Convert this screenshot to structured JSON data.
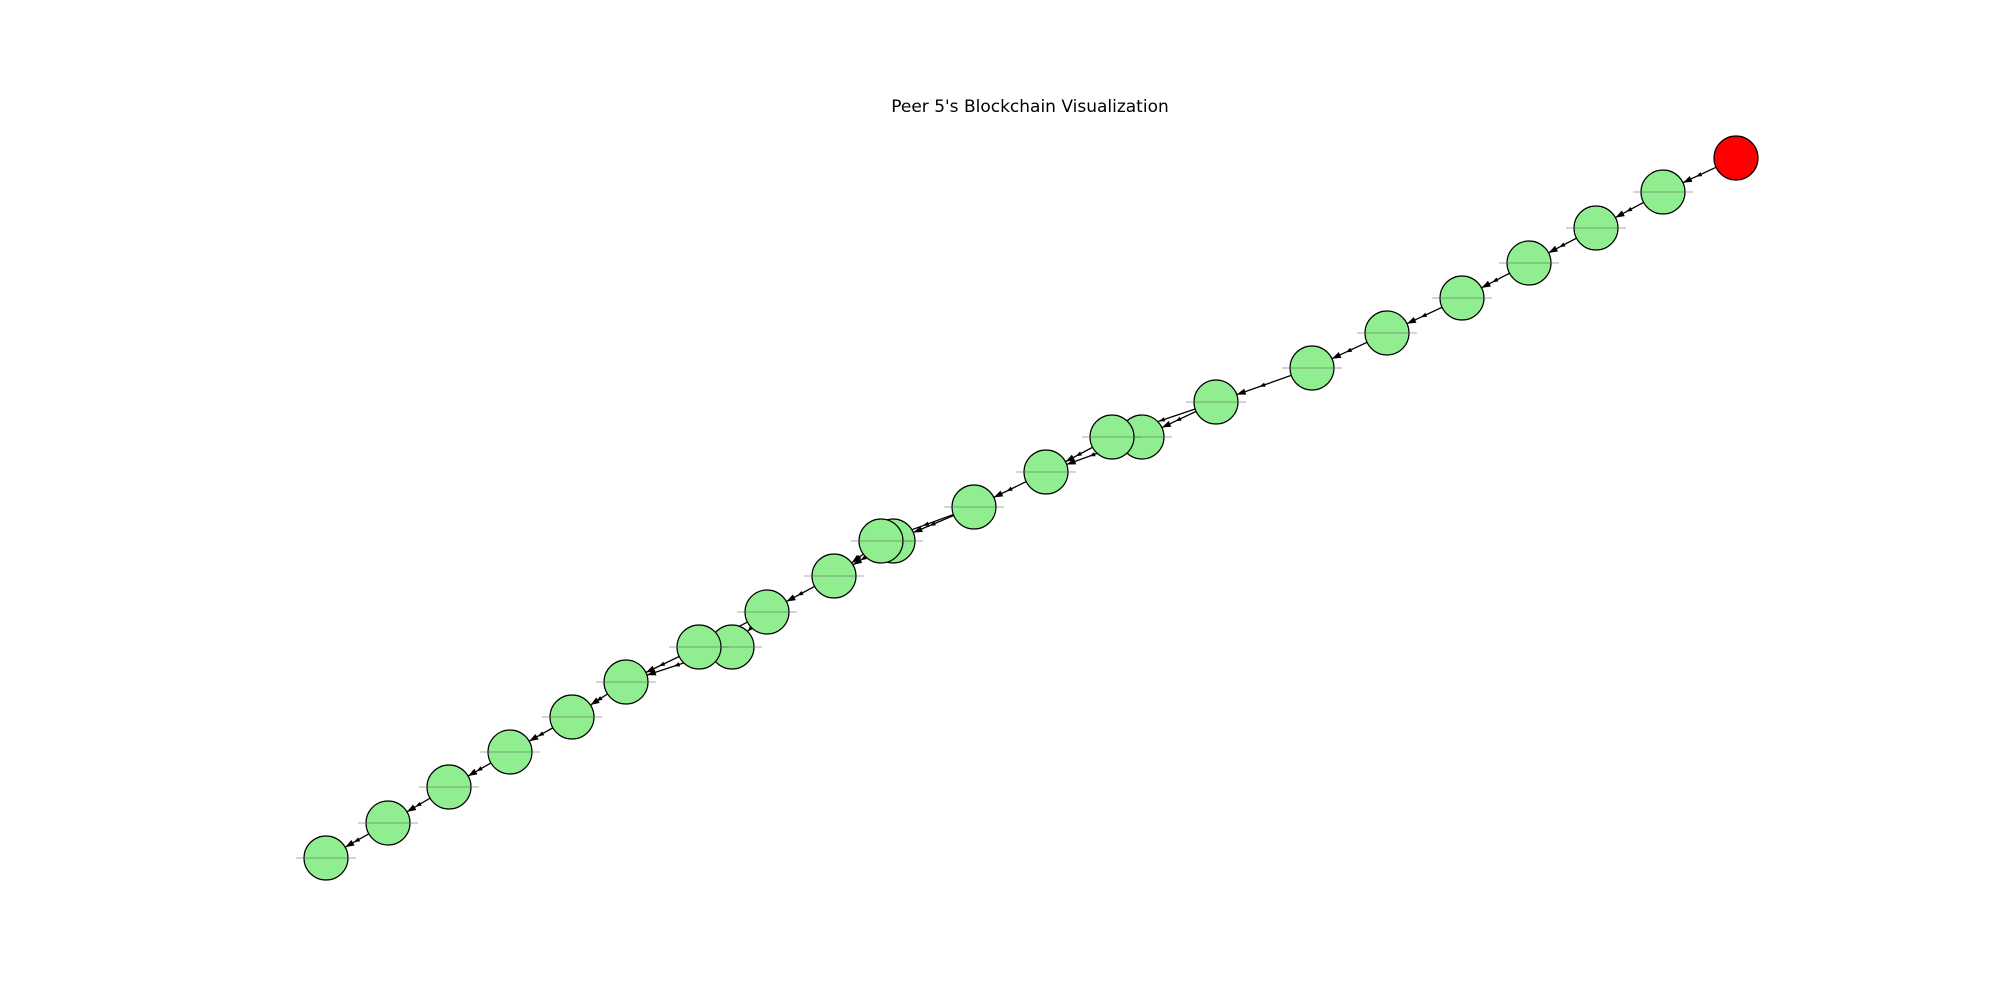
{
  "title": "Peer 5's Blockchain Visualization",
  "colors": {
    "block": "#90ee90",
    "head_block": "#ff0000",
    "edge": "#000000",
    "background": "#ffffff"
  }
}
